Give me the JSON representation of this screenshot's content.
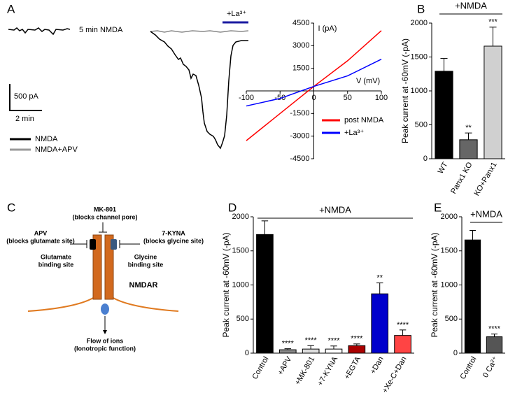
{
  "panels": [
    "A",
    "B",
    "C",
    "D",
    "E"
  ],
  "traces": {
    "label": "5 min NMDA",
    "drug": "+La³⁺",
    "scale_current": "500 pA",
    "scale_time": "2 min",
    "legend": [
      "NMDA",
      "NMDA+APV"
    ]
  },
  "diagram": {
    "mk801": {
      "name": "MK-801",
      "note": "(blocks channel pore)"
    },
    "apv": {
      "name": "APV",
      "note": "(blocks glutamate site)"
    },
    "kyna": {
      "name": "7-KYNA",
      "note": "(blocks glycine site)"
    },
    "glutamate": [
      "Glutamate",
      "binding site"
    ],
    "glycine": [
      "Glycine",
      "binding site"
    ],
    "receptor": "NMDAR",
    "flow": [
      "Flow of ions",
      "(Ionotropic function)"
    ]
  },
  "chart_data": [
    {
      "type": "line",
      "xlabel": "V (mV)",
      "ylabel": "I (pA)",
      "x": [
        -100,
        -50,
        0,
        50,
        100
      ],
      "series": [
        {
          "name": "post NMDA",
          "color": "#ff0000",
          "values": [
            -3300,
            -1500,
            300,
            2000,
            4000
          ]
        },
        {
          "name": "+La³⁺",
          "color": "#0000ff",
          "values": [
            -1000,
            -500,
            300,
            1000,
            2100
          ]
        }
      ],
      "xlim": [
        -100,
        100
      ],
      "xticks": [
        -100,
        -50,
        0,
        50,
        100
      ],
      "ylim": [
        -4500,
        4500
      ],
      "yticks": [
        -4500,
        -3000,
        -1500,
        1500,
        3000,
        4500
      ]
    },
    {
      "type": "bar",
      "annotation": "+NMDA",
      "ylabel": "Peak current at -60mV (-pA)",
      "categories": [
        "WT",
        "Panx1 KO",
        "KO+Panx1"
      ],
      "values": [
        1290,
        280,
        1660
      ],
      "errors": [
        190,
        100,
        280
      ],
      "significance": [
        null,
        "**",
        "***"
      ],
      "colors": [
        "#000000",
        "#666666",
        "#d0d0d0"
      ],
      "ylim": [
        0,
        2000
      ],
      "yticks": [
        0,
        500,
        1000,
        1500,
        2000
      ]
    },
    {
      "type": "bar",
      "annotation": "+NMDA",
      "ylabel": "Peak current at -60mV (-pA)",
      "categories": [
        "Control",
        "+APV",
        "+MK-801",
        "+7-KYNA",
        "+EGTA",
        "+Dan",
        "+Xe-C+Dan"
      ],
      "values": [
        1740,
        50,
        60,
        60,
        110,
        870,
        260
      ],
      "errors": [
        200,
        15,
        50,
        45,
        25,
        160,
        80
      ],
      "significance": [
        null,
        "****",
        "****",
        "****",
        "****",
        "**",
        "****"
      ],
      "colors": [
        "#000000",
        "#888888",
        "#dddddd",
        "#ffffff",
        "#aa0000",
        "#0000cc",
        "#ff4444"
      ],
      "ylim": [
        0,
        2000
      ],
      "yticks": [
        0,
        500,
        1000,
        1500,
        2000
      ]
    },
    {
      "type": "bar",
      "annotation": "+NMDA",
      "ylabel": "Peak current at -60mV (-pA)",
      "categories": [
        "Control",
        "0 Ca²⁺"
      ],
      "values": [
        1660,
        240
      ],
      "errors": [
        140,
        40
      ],
      "significance": [
        null,
        "****"
      ],
      "colors": [
        "#000000",
        "#555555"
      ],
      "ylim": [
        0,
        2000
      ],
      "yticks": [
        0,
        500,
        1000,
        1500,
        2000
      ]
    }
  ]
}
